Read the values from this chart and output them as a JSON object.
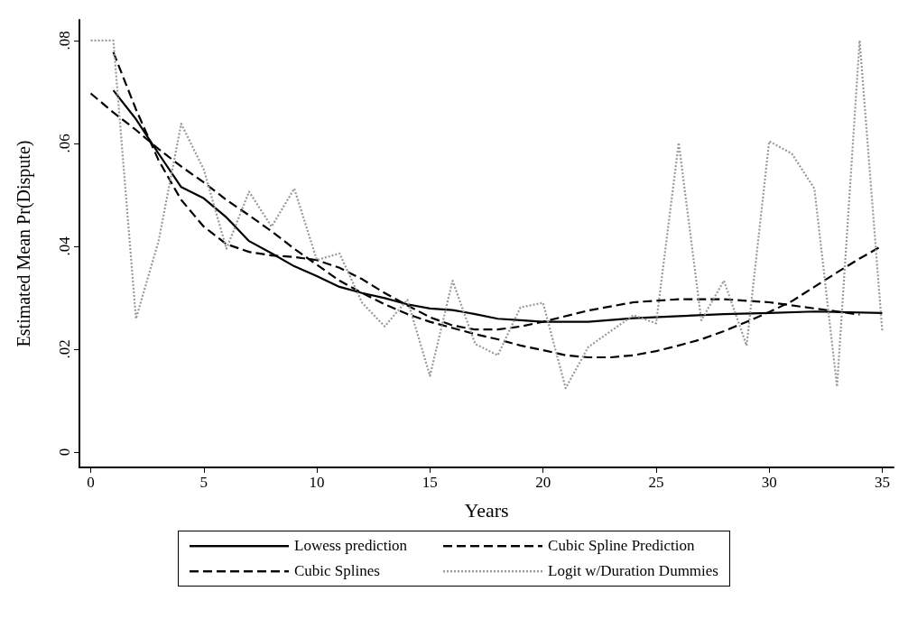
{
  "chart_data": {
    "type": "line",
    "xlabel": "Years",
    "ylabel": "Estimated Mean Pr(Dispute)",
    "xlim": [
      -0.5,
      35.5
    ],
    "ylim": [
      -0.003,
      0.084
    ],
    "xticks": [
      0,
      5,
      10,
      15,
      20,
      25,
      30,
      35
    ],
    "yticks": [
      {
        "value": 0,
        "label": "0"
      },
      {
        "value": 0.02,
        "label": ".02"
      },
      {
        "value": 0.04,
        "label": ".04"
      },
      {
        "value": 0.06,
        "label": ".06"
      },
      {
        "value": 0.08,
        "label": ".08"
      }
    ],
    "grid": false,
    "legend": "bottom",
    "marker": "none",
    "series": [
      {
        "name": "Lowess prediction",
        "color": "#000000",
        "line_style": "solid",
        "x": [
          1,
          2,
          3,
          4,
          5,
          6,
          7,
          8,
          9,
          10,
          11,
          12,
          13,
          14,
          15,
          16,
          17,
          18,
          19,
          20,
          22,
          24,
          26,
          28,
          30,
          32,
          35
        ],
        "values": [
          0.0703,
          0.0647,
          0.058,
          0.0515,
          0.0493,
          0.0456,
          0.041,
          0.0386,
          0.0361,
          0.0342,
          0.0321,
          0.0309,
          0.0299,
          0.0287,
          0.0279,
          0.0276,
          0.0268,
          0.0259,
          0.0256,
          0.0253,
          0.0253,
          0.026,
          0.0264,
          0.0268,
          0.027,
          0.0273,
          0.027
        ]
      },
      {
        "name": "Cubic Spline Prediction",
        "color": "#000000",
        "line_style": "dashed",
        "x": [
          1,
          2,
          3,
          4,
          5,
          6,
          7,
          8,
          9,
          10,
          11,
          12,
          13,
          14,
          15,
          16,
          17,
          18,
          19,
          20,
          22,
          24,
          26,
          28,
          30,
          32,
          34
        ],
        "values": [
          0.0777,
          0.0666,
          0.0567,
          0.049,
          0.0438,
          0.0404,
          0.0389,
          0.0382,
          0.0379,
          0.0373,
          0.0358,
          0.0336,
          0.0309,
          0.0285,
          0.0262,
          0.0246,
          0.0238,
          0.0238,
          0.0244,
          0.0253,
          0.0275,
          0.0291,
          0.0297,
          0.0297,
          0.0291,
          0.0279,
          0.0267
        ]
      },
      {
        "name": "Cubic Splines",
        "color": "#000000",
        "line_style": "dashed",
        "x": [
          0,
          1,
          2,
          3,
          4,
          5,
          6,
          7,
          8,
          9,
          10,
          11,
          12,
          13,
          14,
          15,
          16,
          17,
          18,
          19,
          20,
          21,
          22,
          23,
          24,
          25,
          26,
          27,
          28,
          29,
          30,
          31,
          32,
          33,
          34,
          35
        ],
        "values": [
          0.0697,
          0.066,
          0.0626,
          0.0589,
          0.0555,
          0.0524,
          0.049,
          0.046,
          0.0429,
          0.0395,
          0.0364,
          0.0333,
          0.0309,
          0.0287,
          0.0268,
          0.0253,
          0.0241,
          0.0229,
          0.0219,
          0.0207,
          0.0198,
          0.0188,
          0.0184,
          0.0184,
          0.0188,
          0.0196,
          0.0207,
          0.0219,
          0.0235,
          0.0253,
          0.0272,
          0.0293,
          0.0321,
          0.0349,
          0.0376,
          0.0401
        ]
      },
      {
        "name": "Logit w/Duration Dummies",
        "color": "#999999",
        "line_style": "dotted",
        "x": [
          0,
          1,
          2,
          3,
          4,
          5,
          6,
          7,
          8,
          9,
          10,
          11,
          12,
          13,
          14,
          15,
          16,
          17,
          18,
          19,
          20,
          21,
          22,
          23,
          24,
          25,
          26,
          27,
          28,
          29,
          30,
          31,
          32,
          33,
          34,
          35
        ],
        "values": [
          0.08,
          0.08,
          0.0259,
          0.041,
          0.0638,
          0.0549,
          0.0395,
          0.0506,
          0.0438,
          0.0512,
          0.0373,
          0.0386,
          0.029,
          0.0244,
          0.0296,
          0.0148,
          0.0333,
          0.021,
          0.0188,
          0.0281,
          0.029,
          0.0124,
          0.0204,
          0.0235,
          0.0266,
          0.025,
          0.0601,
          0.0256,
          0.0333,
          0.0207,
          0.0604,
          0.058,
          0.0512,
          0.0127,
          0.08,
          0.0235
        ]
      }
    ]
  }
}
